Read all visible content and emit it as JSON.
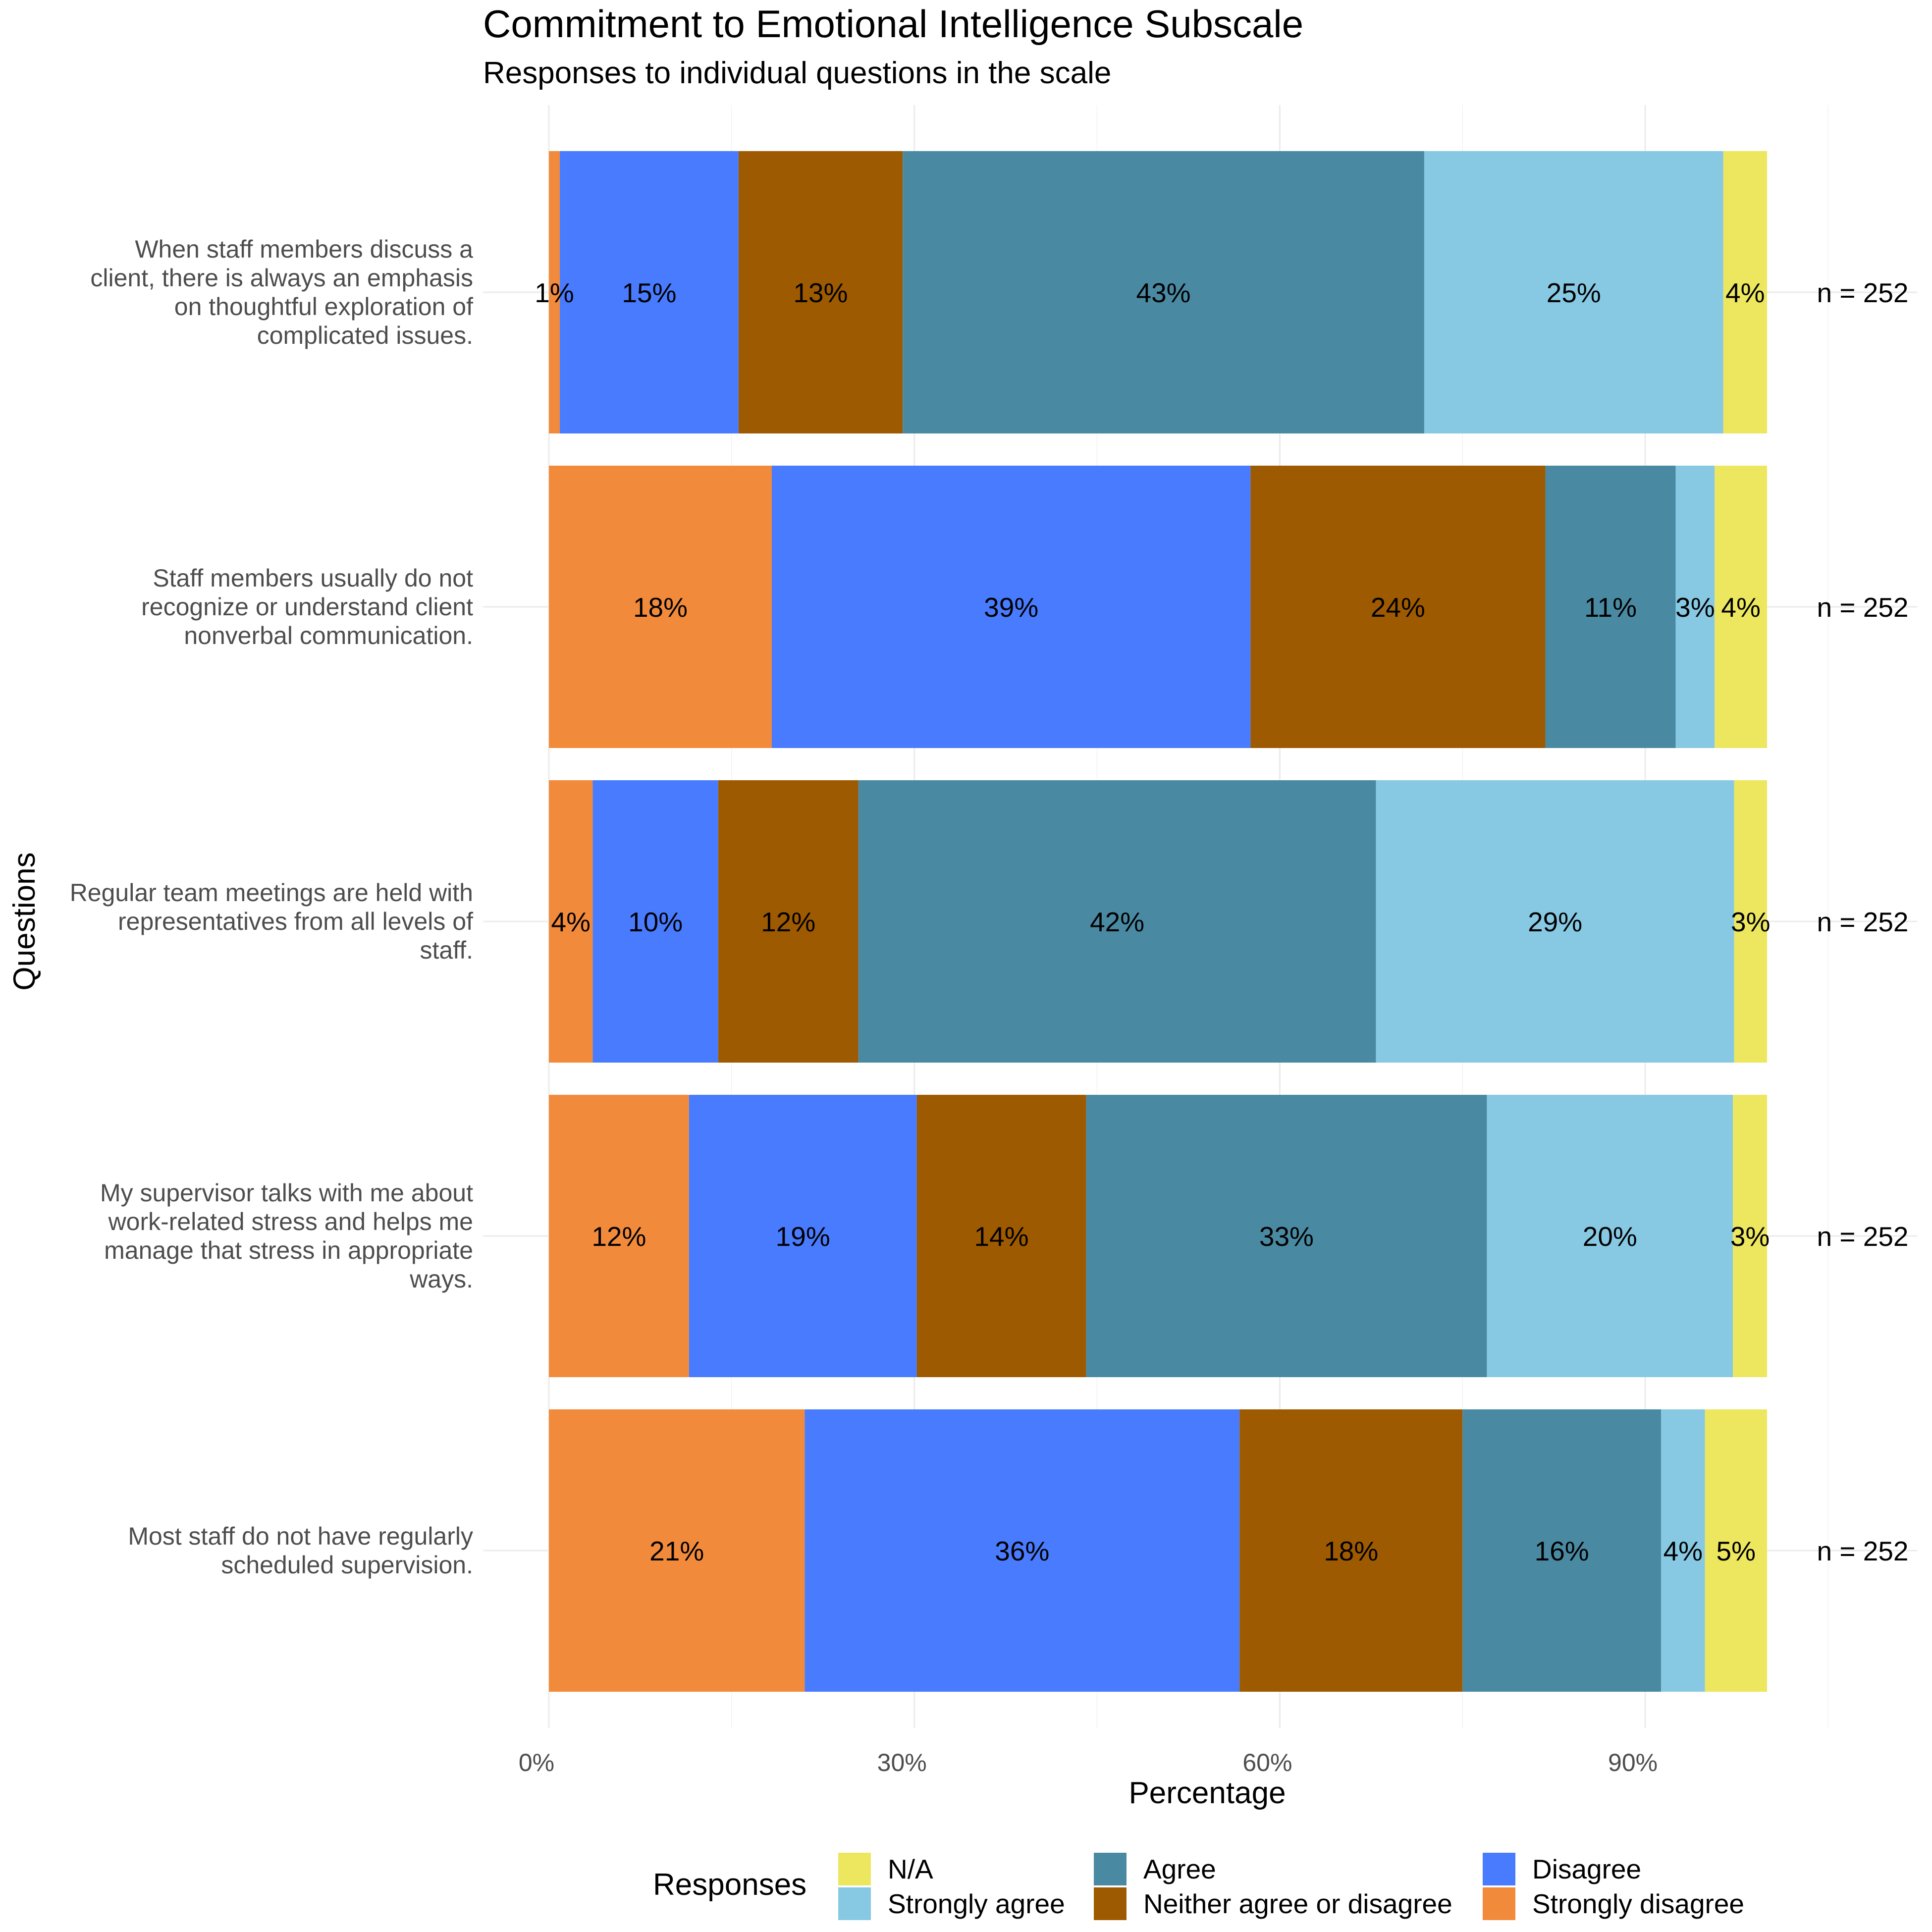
{
  "chart_data": {
    "type": "bar",
    "orientation": "horizontal",
    "stacked": true,
    "title": "Commitment to Emotional Intelligence Subscale",
    "subtitle": "Responses to individual questions in the scale",
    "xlabel": "Percentage",
    "ylabel": "Questions",
    "xlim": [
      0,
      100
    ],
    "x_ticks": [
      "0%",
      "30%",
      "60%",
      "90%"
    ],
    "x_tick_values": [
      0,
      30,
      60,
      90
    ],
    "grid": true,
    "legend": {
      "title": "Responses",
      "placement": "bottom",
      "entries": [
        "N/A",
        "Strongly agree",
        "Agree",
        "Neither agree or disagree",
        "Disagree",
        "Strongly disagree"
      ]
    },
    "series": [
      {
        "name": "Strongly disagree",
        "color": "#F28A3C"
      },
      {
        "name": "Disagree",
        "color": "#487BFE"
      },
      {
        "name": "Neither agree or disagree",
        "color": "#9E5A00"
      },
      {
        "name": "Agree",
        "color": "#498AA2"
      },
      {
        "name": "Strongly agree",
        "color": "#87C9E3"
      },
      {
        "name": "N/A",
        "color": "#EDE65F"
      }
    ],
    "categories": [
      {
        "question": "When staff members discuss a client, there is always an emphasis on thoughtful exploration of complicated issues.",
        "lines": [
          "When staff members discuss a",
          "client, there is always an emphasis",
          "on thoughtful exploration of",
          "complicated issues."
        ],
        "n_label": "n = 252",
        "values": [
          0.9,
          14.7,
          13.5,
          42.9,
          24.6,
          3.6
        ],
        "labels": [
          "1%",
          "15%",
          "13%",
          "43%",
          "25%",
          "4%"
        ]
      },
      {
        "question": "Staff members usually do not recognize or understand client nonverbal communication.",
        "lines": [
          "Staff members usually do not",
          "recognize or understand client",
          "nonverbal communication."
        ],
        "n_label": "n = 252",
        "values": [
          18.3,
          39.3,
          24.2,
          10.7,
          3.2,
          4.3
        ],
        "labels": [
          "18%",
          "39%",
          "24%",
          "11%",
          "3%",
          "4%"
        ]
      },
      {
        "question": "Regular team meetings are held with representatives from all levels of staff.",
        "lines": [
          "Regular team meetings are held with",
          "representatives from all levels of",
          "staff."
        ],
        "n_label": "n = 252",
        "values": [
          3.6,
          10.3,
          11.5,
          42.5,
          29.4,
          2.7
        ],
        "labels": [
          "4%",
          "10%",
          "12%",
          "42%",
          "29%",
          "3%"
        ]
      },
      {
        "question": "My supervisor talks with me about work-related stress and helps me manage that stress in appropriate ways.",
        "lines": [
          "My supervisor talks with me about",
          "work-related stress and helps me",
          "manage that stress in appropriate",
          "ways."
        ],
        "n_label": "n = 252",
        "values": [
          11.5,
          18.7,
          13.9,
          32.9,
          20.2,
          2.8
        ],
        "labels": [
          "12%",
          "19%",
          "14%",
          "33%",
          "20%",
          "3%"
        ]
      },
      {
        "question": "Most staff do not have regularly scheduled supervision.",
        "lines": [
          "Most staff do not have regularly",
          "scheduled supervision."
        ],
        "n_label": "n = 252",
        "values": [
          21.0,
          35.7,
          18.3,
          16.3,
          3.6,
          5.1
        ],
        "labels": [
          "21%",
          "36%",
          "18%",
          "16%",
          "4%",
          "5%"
        ]
      }
    ]
  }
}
